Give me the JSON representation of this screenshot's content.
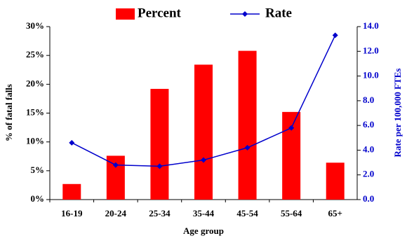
{
  "chart_data": {
    "type": "bar",
    "x_label": "Age group",
    "y_label": "% of fatal falls",
    "y2_label": "Rate per 100,000 FTEs",
    "categories": [
      "16-19",
      "20-24",
      "25-34",
      "35-44",
      "45-54",
      "55-64",
      "65+"
    ],
    "series": [
      {
        "name": "Percent",
        "type": "bar",
        "color": "#ff0000",
        "values": [
          2.7,
          7.6,
          19.2,
          23.4,
          25.8,
          15.2,
          6.4
        ]
      },
      {
        "name": "Rate",
        "type": "line",
        "color": "#0000cc",
        "axis": "y2",
        "values": [
          4.6,
          2.8,
          2.7,
          3.2,
          4.2,
          5.8,
          13.3
        ]
      }
    ],
    "ylim": [
      0,
      30
    ],
    "yticks": [
      {
        "value": 0,
        "label": "0%"
      },
      {
        "value": 5,
        "label": "5%"
      },
      {
        "value": 10,
        "label": "10%"
      },
      {
        "value": 15,
        "label": "15%"
      },
      {
        "value": 20,
        "label": "20%"
      },
      {
        "value": 25,
        "label": "25%"
      },
      {
        "value": 30,
        "label": "30%"
      }
    ],
    "y2lim": [
      0,
      14
    ],
    "y2ticks": [
      {
        "value": 0,
        "label": "0.0"
      },
      {
        "value": 2,
        "label": "2.0"
      },
      {
        "value": 4,
        "label": "4.0"
      },
      {
        "value": 6,
        "label": "6.0"
      },
      {
        "value": 8,
        "label": "8.0"
      },
      {
        "value": 10,
        "label": "10.0"
      },
      {
        "value": 12,
        "label": "12.0"
      },
      {
        "value": 14,
        "label": "14.0"
      }
    ]
  }
}
